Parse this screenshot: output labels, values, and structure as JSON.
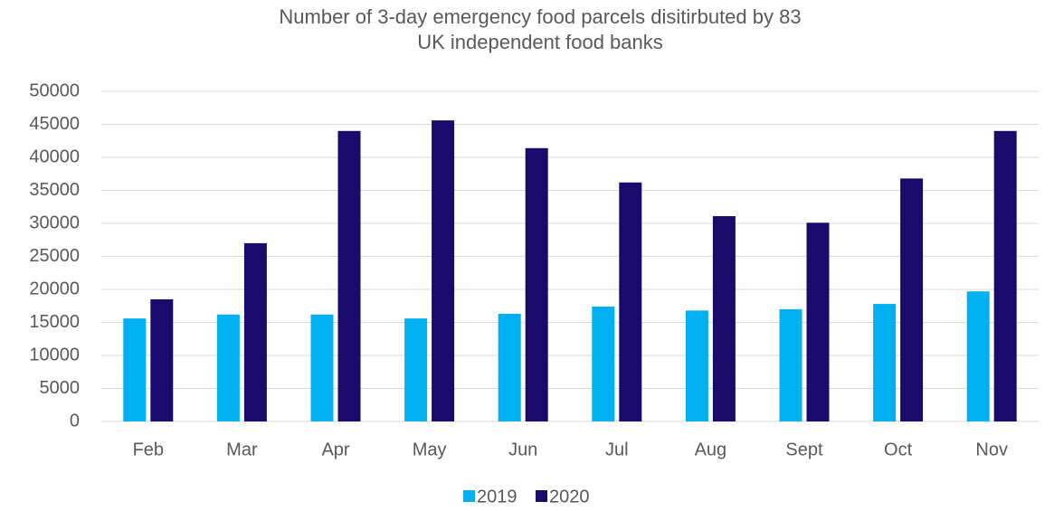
{
  "chart_data": {
    "type": "bar",
    "title": [
      "Number of 3-day emergency food parcels disitirbuted by 83",
      "UK independent food banks"
    ],
    "categories": [
      "Feb",
      "Mar",
      "Apr",
      "May",
      "Jun",
      "Jul",
      "Aug",
      "Sept",
      "Oct",
      "Nov"
    ],
    "series": [
      {
        "name": "2019",
        "color": "#00b0f0",
        "values": [
          15600,
          16200,
          16200,
          15600,
          16300,
          17400,
          16800,
          17000,
          17800,
          19700
        ]
      },
      {
        "name": "2020",
        "color": "#1a0a6b",
        "values": [
          18500,
          27000,
          44000,
          45600,
          41400,
          36200,
          31100,
          30100,
          36800,
          44000
        ]
      }
    ],
    "ylim": [
      0,
      50000
    ],
    "yticks": [
      0,
      5000,
      10000,
      15000,
      20000,
      25000,
      30000,
      35000,
      40000,
      45000,
      50000
    ],
    "grid": true,
    "legend": "bottom"
  }
}
